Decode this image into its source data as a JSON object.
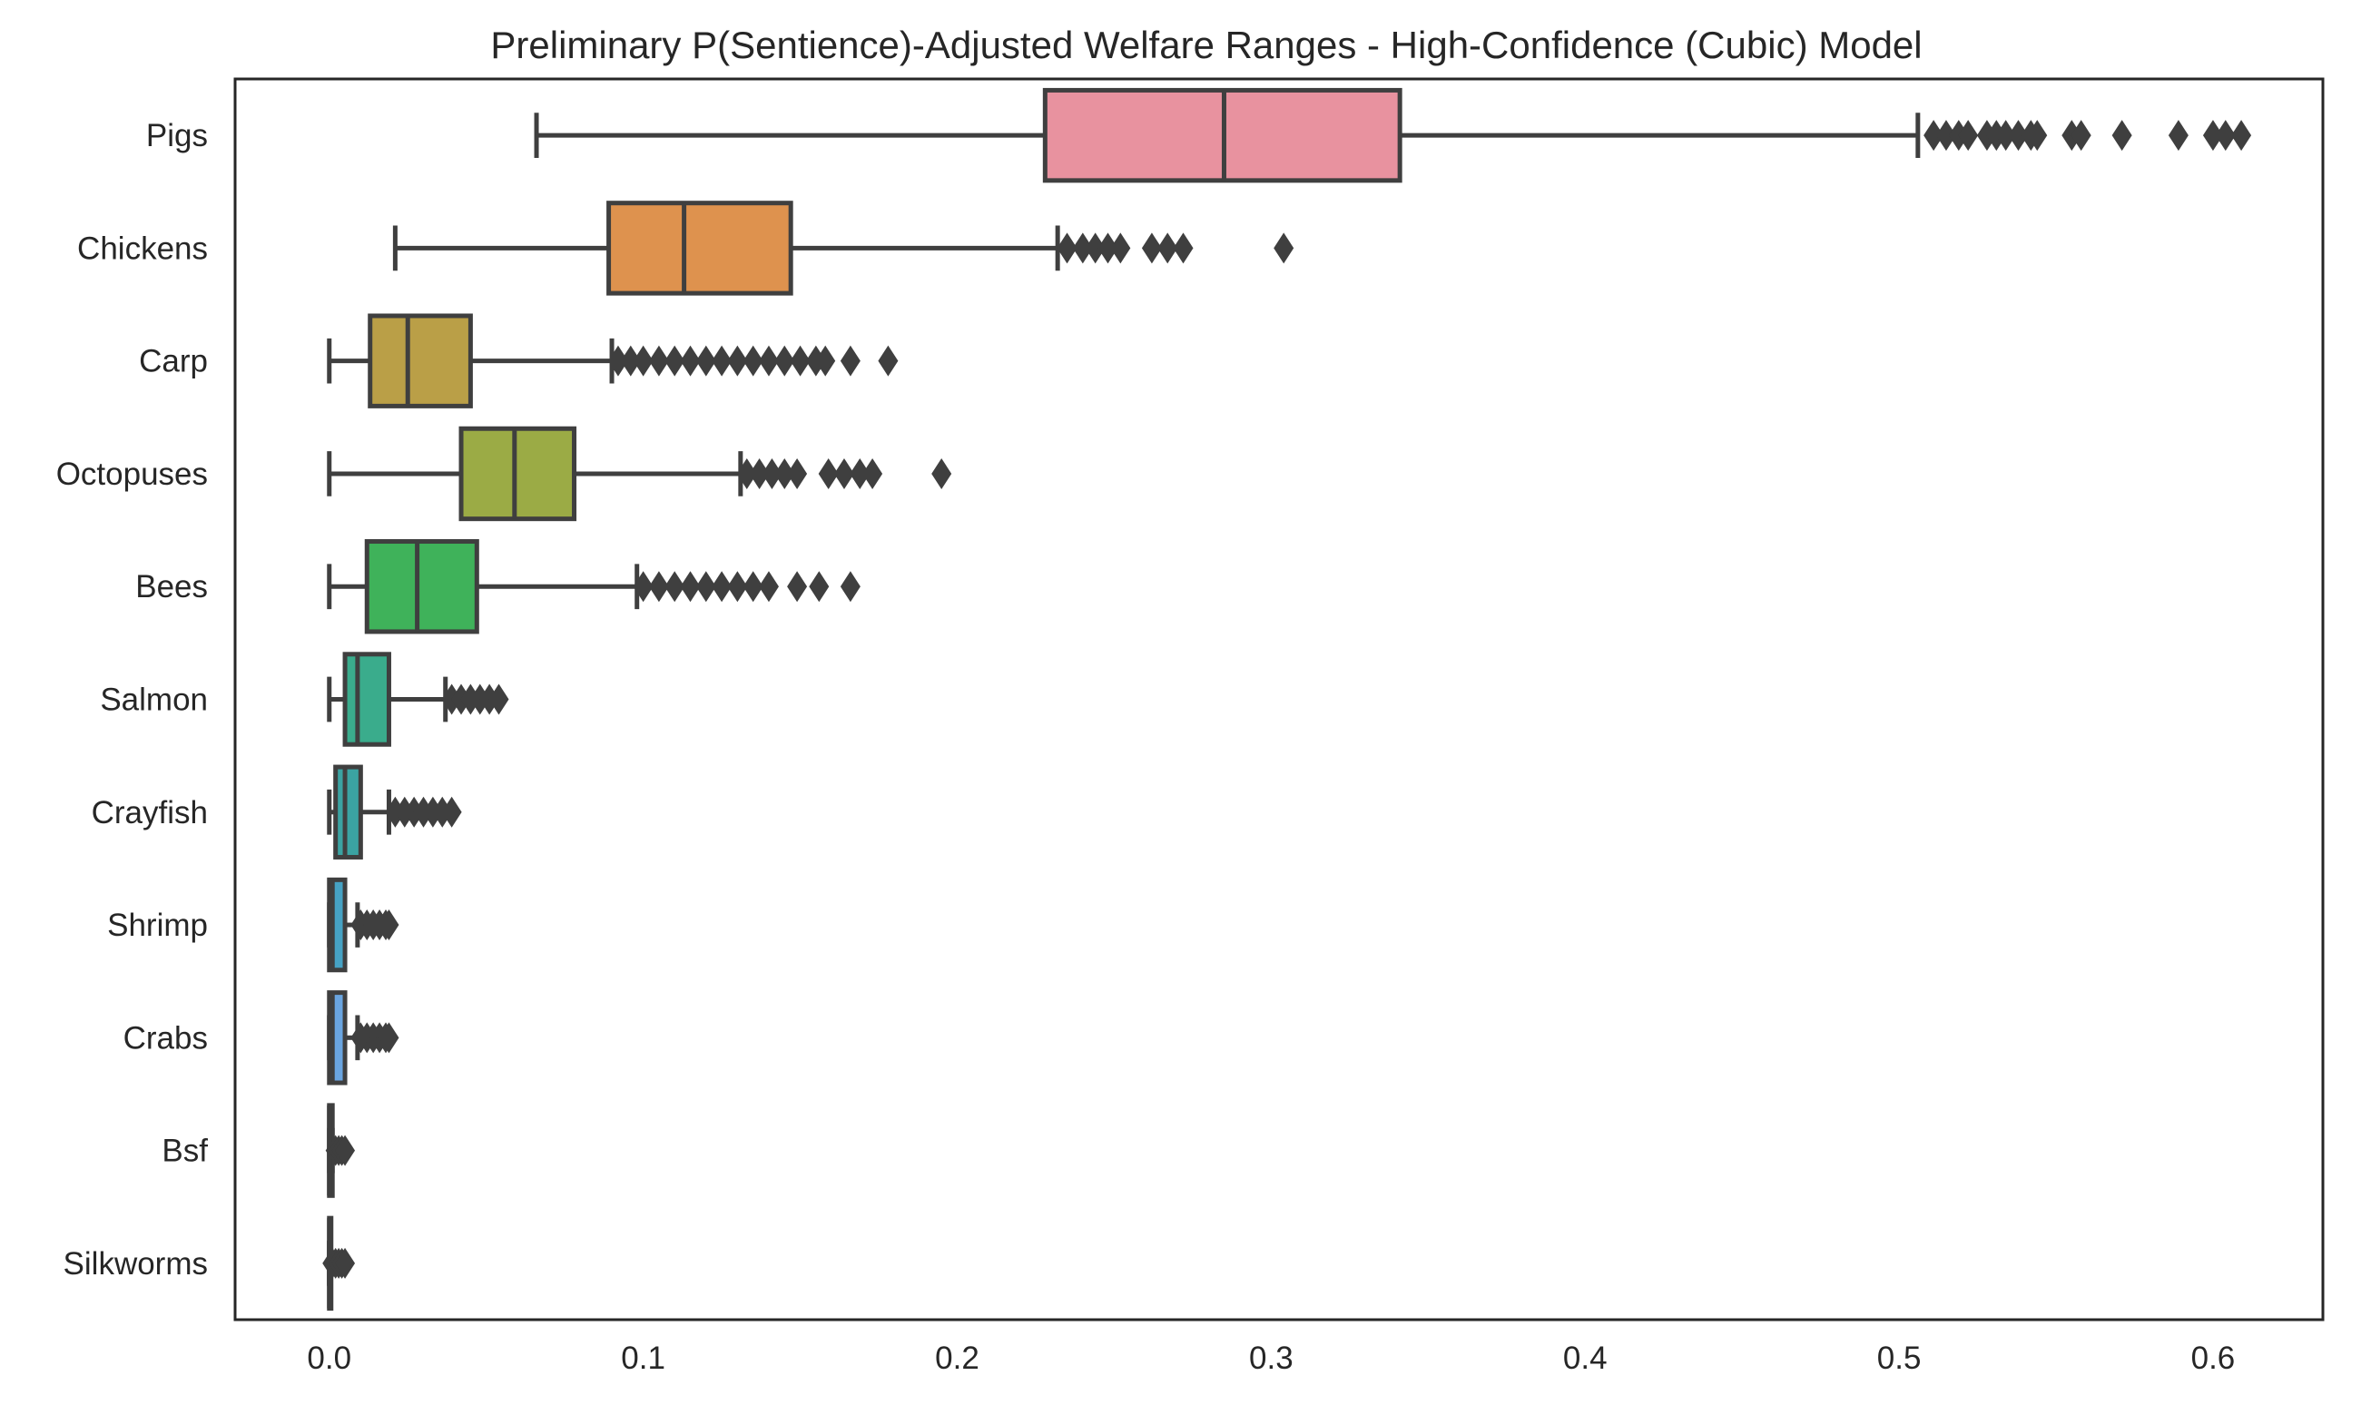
{
  "chart_data": {
    "type": "boxplot",
    "orientation": "horizontal",
    "title": "Preliminary P(Sentience)-Adjusted Welfare Ranges - High-Confidence (Cubic) Model",
    "xlabel": "",
    "ylabel": "",
    "xlim": [
      -0.03,
      0.635
    ],
    "xticks": [
      0.0,
      0.1,
      0.2,
      0.3,
      0.4,
      0.5,
      0.6
    ],
    "xtick_labels": [
      "0.0",
      "0.1",
      "0.2",
      "0.3",
      "0.4",
      "0.5",
      "0.6"
    ],
    "grid": false,
    "series": [
      {
        "category": "Pigs",
        "color": "#e8929f",
        "whisker_low": 0.066,
        "q1": 0.228,
        "median": 0.285,
        "q3": 0.341,
        "whisker_high": 0.506,
        "outliers": [
          0.511,
          0.515,
          0.519,
          0.522,
          0.528,
          0.531,
          0.534,
          0.538,
          0.542,
          0.544,
          0.555,
          0.558,
          0.571,
          0.589,
          0.6,
          0.604,
          0.609
        ]
      },
      {
        "category": "Chickens",
        "color": "#de924e",
        "whisker_low": 0.021,
        "q1": 0.089,
        "median": 0.113,
        "q3": 0.147,
        "whisker_high": 0.232,
        "outliers": [
          0.235,
          0.24,
          0.244,
          0.248,
          0.252,
          0.262,
          0.267,
          0.272,
          0.304
        ]
      },
      {
        "category": "Carp",
        "color": "#ba9f47",
        "whisker_low": 0.0,
        "q1": 0.013,
        "median": 0.025,
        "q3": 0.045,
        "whisker_high": 0.09,
        "outliers": [
          0.092,
          0.096,
          0.1,
          0.105,
          0.11,
          0.115,
          0.12,
          0.125,
          0.13,
          0.135,
          0.14,
          0.145,
          0.15,
          0.155,
          0.158,
          0.166,
          0.178
        ]
      },
      {
        "category": "Octopuses",
        "color": "#9bab45",
        "whisker_low": 0.0,
        "q1": 0.042,
        "median": 0.059,
        "q3": 0.078,
        "whisker_high": 0.131,
        "outliers": [
          0.133,
          0.137,
          0.141,
          0.145,
          0.149,
          0.159,
          0.164,
          0.169,
          0.173,
          0.195
        ]
      },
      {
        "category": "Bees",
        "color": "#3fb25a",
        "whisker_low": 0.0,
        "q1": 0.012,
        "median": 0.028,
        "q3": 0.047,
        "whisker_high": 0.098,
        "outliers": [
          0.1,
          0.105,
          0.11,
          0.115,
          0.12,
          0.125,
          0.13,
          0.135,
          0.14,
          0.149,
          0.156,
          0.166
        ]
      },
      {
        "category": "Salmon",
        "color": "#3aac8c",
        "whisker_low": 0.0,
        "q1": 0.005,
        "median": 0.009,
        "q3": 0.019,
        "whisker_high": 0.037,
        "outliers": [
          0.039,
          0.042,
          0.045,
          0.048,
          0.051,
          0.054
        ]
      },
      {
        "category": "Crayfish",
        "color": "#3ba3a2",
        "whisker_low": 0.0,
        "q1": 0.002,
        "median": 0.005,
        "q3": 0.01,
        "whisker_high": 0.019,
        "outliers": [
          0.021,
          0.024,
          0.027,
          0.03,
          0.033,
          0.036,
          0.039
        ]
      },
      {
        "category": "Shrimp",
        "color": "#46a2c4",
        "whisker_low": 0.0,
        "q1": 0.0,
        "median": 0.001,
        "q3": 0.005,
        "whisker_high": 0.009,
        "outliers": [
          0.01,
          0.012,
          0.014,
          0.016,
          0.018,
          0.019
        ]
      },
      {
        "category": "Crabs",
        "color": "#6aa5e0",
        "whisker_low": 0.0,
        "q1": 0.0,
        "median": 0.001,
        "q3": 0.005,
        "whisker_high": 0.009,
        "outliers": [
          0.01,
          0.012,
          0.014,
          0.016,
          0.018,
          0.019
        ]
      },
      {
        "category": "Bsf",
        "color": "#bb8ef0",
        "whisker_low": 0.0,
        "q1": 0.0,
        "median": 0.0,
        "q3": 0.001,
        "whisker_high": 0.001,
        "outliers": [
          0.002,
          0.003,
          0.004,
          0.005
        ]
      },
      {
        "category": "Silkworms",
        "color": "#e883d4",
        "whisker_low": 0.0,
        "q1": 0.0,
        "median": 0.0,
        "q3": 0.0,
        "whisker_high": 0.0,
        "outliers": [
          0.001,
          0.002,
          0.003,
          0.004,
          0.005
        ]
      }
    ]
  }
}
